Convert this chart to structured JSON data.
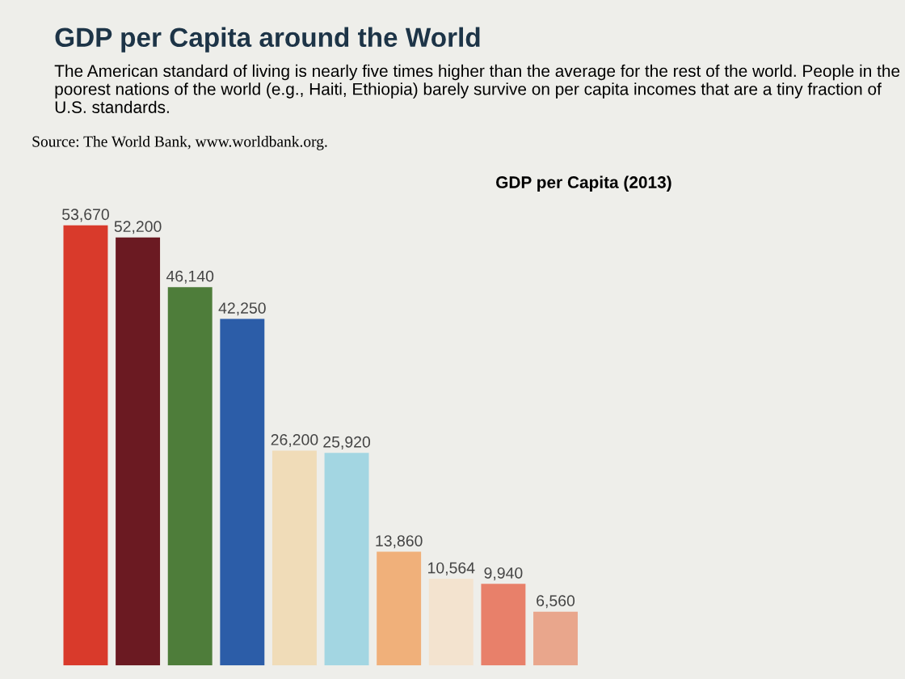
{
  "chart_data": {
    "type": "bar",
    "title": "GDP per Capita around the World",
    "subtitle": "The American standard of living is nearly five times higher than the average for the rest of the world. People in the poorest nations of the world (e.g., Haiti, Ethiopia) barely survive on per capita incomes that are a tiny fraction of U.S. standards.",
    "annotations": [
      "Source: The World Bank, www.worldbank.org.",
      "GDP per Capita (2013)"
    ],
    "categories": [
      null,
      null,
      null,
      null,
      null,
      null,
      null,
      null,
      null,
      null
    ],
    "values": [
      53670,
      52200,
      46140,
      42250,
      26200,
      25920,
      13860,
      10564,
      9940,
      6560
    ],
    "colors": [
      "#d93a2b",
      "#6b1a22",
      "#4e7d3a",
      "#2c5da8",
      "#f0dcb8",
      "#a3d6e2",
      "#f0b07a",
      "#f3e3cf",
      "#e8806a",
      "#e9a68c"
    ],
    "value_labels": [
      "53,670",
      "52,200",
      "46,140",
      "42,250",
      "26,200",
      "25,920",
      "13,860",
      "10,564",
      "9,940",
      "6,560"
    ]
  }
}
